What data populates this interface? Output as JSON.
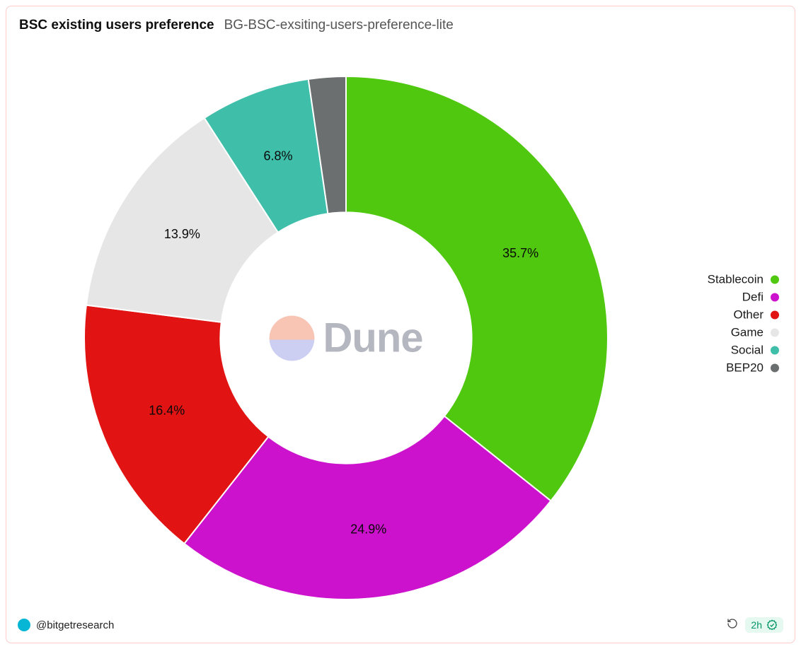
{
  "header": {
    "title": "BSC existing users preference",
    "subtitle": "BG-BSC-exsiting-users-preference-lite"
  },
  "chart": {
    "type": "donut",
    "inner_radius_ratio": 0.48,
    "background_color": "#ffffff",
    "start_angle_deg": 0,
    "label_fontsize": 18,
    "label_color": "#0a0a0a",
    "slices": [
      {
        "name": "Stablecoin",
        "value": 35.7,
        "label": "35.7%",
        "color": "#4fc80f"
      },
      {
        "name": "Defi",
        "value": 24.9,
        "label": "24.9%",
        "color": "#cc12cc"
      },
      {
        "name": "Other",
        "value": 16.4,
        "label": "16.4%",
        "color": "#e11313"
      },
      {
        "name": "Game",
        "value": 13.9,
        "label": "13.9%",
        "color": "#e6e6e6"
      },
      {
        "name": "Social",
        "value": 6.8,
        "label": "6.8%",
        "color": "#3fbfaa"
      },
      {
        "name": "BEP20",
        "value": 2.3,
        "label": "",
        "color": "#6b6f6f"
      }
    ]
  },
  "legend": {
    "items": [
      {
        "label": "Stablecoin",
        "color": "#4fc80f"
      },
      {
        "label": "Defi",
        "color": "#cc12cc"
      },
      {
        "label": "Other",
        "color": "#e11313"
      },
      {
        "label": "Game",
        "color": "#e6e6e6"
      },
      {
        "label": "Social",
        "color": "#3fbfaa"
      },
      {
        "label": "BEP20",
        "color": "#6b6f6f"
      }
    ]
  },
  "watermark": {
    "text": "Dune",
    "logo_top_color": "#f28b6b",
    "logo_bottom_color": "#9aa0e6"
  },
  "footer": {
    "author_handle": "@bitgetresearch",
    "avatar_color": "#06b6d4",
    "age_label": "2h"
  }
}
